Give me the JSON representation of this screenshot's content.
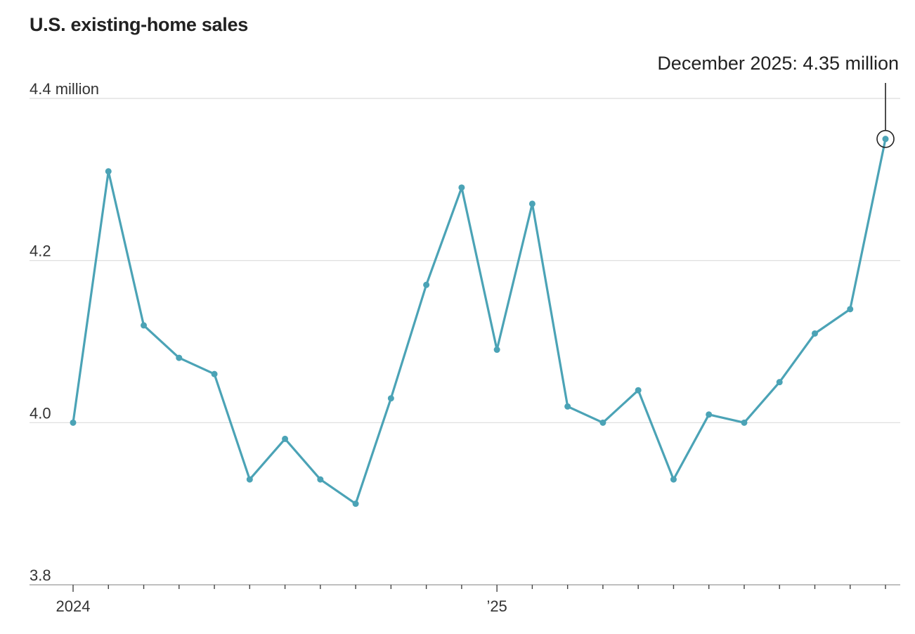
{
  "chart_data": {
    "type": "line",
    "title": "U.S. existing-home sales",
    "xlabel": "",
    "ylabel": "",
    "ylim": [
      3.8,
      4.4
    ],
    "y_ticks": [
      {
        "value": 3.8,
        "label": "3.8"
      },
      {
        "value": 4.0,
        "label": "4.0"
      },
      {
        "value": 4.2,
        "label": "4.2"
      },
      {
        "value": 4.4,
        "label": "4.4 million"
      }
    ],
    "x_labels": [
      {
        "index": 0,
        "label": "2024"
      },
      {
        "index": 12,
        "label": "’25"
      }
    ],
    "grid": true,
    "color": "#4ba3b6",
    "x": [
      "2024-01",
      "2024-02",
      "2024-03",
      "2024-04",
      "2024-05",
      "2024-06",
      "2024-07",
      "2024-08",
      "2024-09",
      "2024-10",
      "2024-11",
      "2024-12",
      "2025-01",
      "2025-02",
      "2025-03",
      "2025-04",
      "2025-05",
      "2025-06",
      "2025-07",
      "2025-08",
      "2025-09",
      "2025-10",
      "2025-11",
      "2025-12"
    ],
    "values": [
      4.0,
      4.31,
      4.12,
      4.08,
      4.06,
      3.93,
      3.98,
      3.93,
      3.9,
      4.03,
      4.17,
      4.29,
      4.09,
      4.27,
      4.02,
      4.0,
      4.04,
      3.93,
      4.01,
      4.0,
      4.05,
      4.11,
      4.14,
      4.35
    ],
    "annotation": {
      "index": 23,
      "text": "December 2025: 4.35 million"
    }
  }
}
